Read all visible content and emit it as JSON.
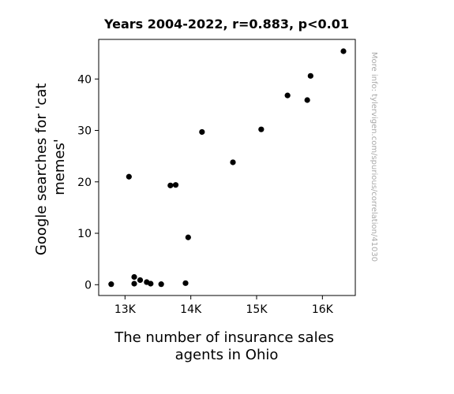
{
  "chart_data": {
    "type": "scatter",
    "title": "Years 2004-2022, r=0.883, p<0.01",
    "xlabel_lines": [
      "The number of insurance sales",
      "agents in Ohio"
    ],
    "ylabel_lines": [
      "Google searches for 'cat",
      "memes'"
    ],
    "watermark": "More info: tylervigen.com/spurious/correlation/41030",
    "xlim": [
      12600,
      16500
    ],
    "ylim": [
      -2.1,
      47.7
    ],
    "x_ticks": [
      {
        "value": 13000,
        "label": "13K"
      },
      {
        "value": 14000,
        "label": "14K"
      },
      {
        "value": 15000,
        "label": "15K"
      },
      {
        "value": 16000,
        "label": "16K"
      }
    ],
    "y_ticks": [
      {
        "value": 0,
        "label": "0"
      },
      {
        "value": 10,
        "label": "10"
      },
      {
        "value": 20,
        "label": "20"
      },
      {
        "value": 30,
        "label": "30"
      },
      {
        "value": 40,
        "label": "40"
      }
    ],
    "grid": false,
    "marker_color": "#000000",
    "points": [
      {
        "x": 12790,
        "y": 0.1
      },
      {
        "x": 13060,
        "y": 21.0
      },
      {
        "x": 13140,
        "y": 1.5
      },
      {
        "x": 13140,
        "y": 0.2
      },
      {
        "x": 13230,
        "y": 0.9
      },
      {
        "x": 13330,
        "y": 0.5
      },
      {
        "x": 13390,
        "y": 0.2
      },
      {
        "x": 13550,
        "y": 0.1
      },
      {
        "x": 13690,
        "y": 19.3
      },
      {
        "x": 13770,
        "y": 19.4
      },
      {
        "x": 13920,
        "y": 0.3
      },
      {
        "x": 13960,
        "y": 9.2
      },
      {
        "x": 14170,
        "y": 29.7
      },
      {
        "x": 14640,
        "y": 23.8
      },
      {
        "x": 15070,
        "y": 30.2
      },
      {
        "x": 15470,
        "y": 36.8
      },
      {
        "x": 15770,
        "y": 35.9
      },
      {
        "x": 15820,
        "y": 40.6
      },
      {
        "x": 16320,
        "y": 45.4
      }
    ]
  }
}
